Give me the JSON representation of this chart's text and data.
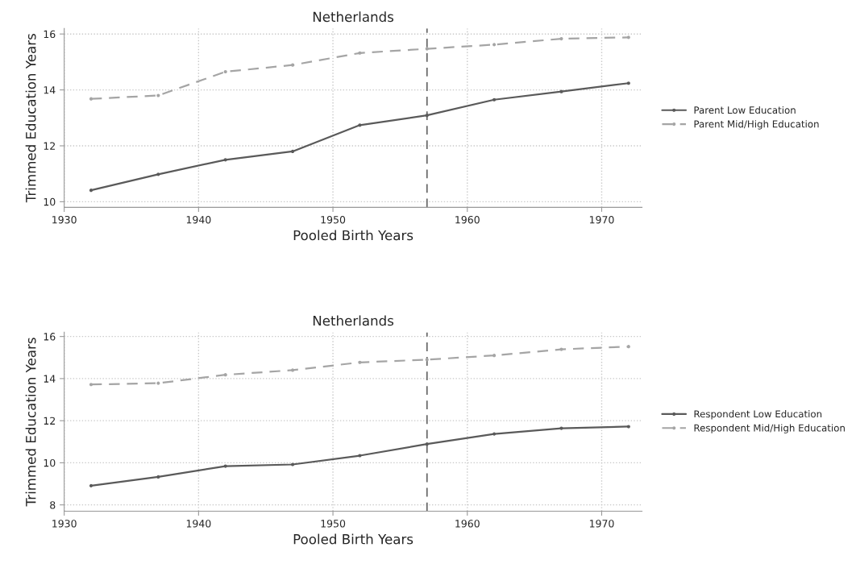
{
  "chart_data": [
    {
      "type": "line",
      "title": "Netherlands",
      "xlabel": "Pooled Birth Years",
      "ylabel": "Trimmed Education Years",
      "x": [
        1932,
        1937,
        1942,
        1947,
        1952,
        1957,
        1962,
        1967,
        1972
      ],
      "series": [
        {
          "name": "Parent Low Education",
          "color": "#5a5a5a",
          "line_style": "solid",
          "values": [
            10.41,
            10.98,
            11.5,
            11.8,
            12.74,
            13.09,
            13.65,
            13.94,
            14.24
          ]
        },
        {
          "name": "Parent Mid/High Education",
          "color": "#a5a5a5",
          "line_style": "dashed",
          "values": [
            13.68,
            13.8,
            14.65,
            14.89,
            15.32,
            15.47,
            15.62,
            15.83,
            15.88
          ]
        }
      ],
      "xlim": [
        1930,
        1973
      ],
      "xticks": [
        1930,
        1940,
        1950,
        1960,
        1970
      ],
      "ylim": [
        9.8,
        16.2
      ],
      "yticks": [
        10,
        12,
        14,
        16
      ],
      "ref_lines": [
        {
          "axis": "x",
          "value": 1957,
          "color": "#6a6a6a",
          "line_style": "dashed"
        }
      ],
      "grid": true,
      "legend": "right",
      "marker": "circle"
    },
    {
      "type": "line",
      "title": "Netherlands",
      "xlabel": "Pooled Birth Years",
      "ylabel": "Trimmed Education Years",
      "x": [
        1932,
        1937,
        1942,
        1947,
        1952,
        1957,
        1962,
        1967,
        1972
      ],
      "series": [
        {
          "name": "Respondent Low Education",
          "color": "#5a5a5a",
          "line_style": "solid",
          "values": [
            8.91,
            9.33,
            9.84,
            9.92,
            10.34,
            10.89,
            11.37,
            11.64,
            11.72
          ]
        },
        {
          "name": "Respondent Mid/High Education",
          "color": "#a5a5a5",
          "line_style": "dashed",
          "values": [
            13.72,
            13.78,
            14.18,
            14.4,
            14.77,
            14.9,
            15.1,
            15.39,
            15.52
          ]
        }
      ],
      "xlim": [
        1930,
        1973
      ],
      "xticks": [
        1930,
        1940,
        1950,
        1960,
        1970
      ],
      "ylim": [
        7.7,
        16.2
      ],
      "yticks": [
        8,
        10,
        12,
        14,
        16
      ],
      "ref_lines": [
        {
          "axis": "x",
          "value": 1957,
          "color": "#6a6a6a",
          "line_style": "dashed"
        }
      ],
      "grid": true,
      "legend": "right",
      "marker": "circle"
    }
  ]
}
